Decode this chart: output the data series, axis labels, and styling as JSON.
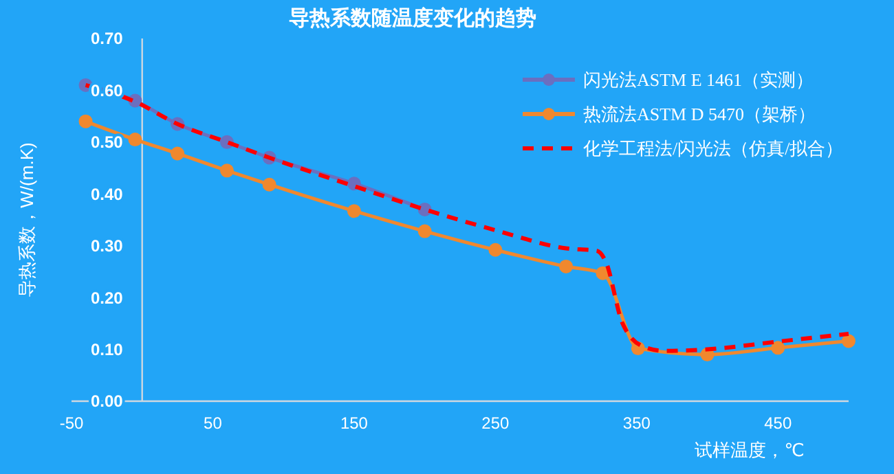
{
  "chart_data": {
    "type": "line",
    "title": "导热系数随温度变化的趋势",
    "xlabel": "试样温度，℃",
    "ylabel": "导热系数，W/(m.K)",
    "xlim": [
      -50,
      500
    ],
    "xticks": [
      -50,
      50,
      150,
      250,
      350,
      450
    ],
    "ylim": [
      0,
      0.7
    ],
    "yticks": [
      {
        "value": 0,
        "label": "0.00"
      },
      {
        "value": 0.1,
        "label": "0.10"
      },
      {
        "value": 0.2,
        "label": "0.20"
      },
      {
        "value": 0.3,
        "label": "0.30"
      },
      {
        "value": 0.4,
        "label": "0.40"
      },
      {
        "value": 0.5,
        "label": "0.50"
      },
      {
        "value": 0.6,
        "label": "0.60"
      },
      {
        "value": 0.7,
        "label": "0.70"
      }
    ],
    "grid": false,
    "legend": "top right",
    "series": [
      {
        "name": "闪光法ASTM E 1461（实测）",
        "color": "#6a6fc0",
        "marker": "circle",
        "line_style": "solid",
        "x": [
          -40,
          -5,
          25,
          60,
          90,
          150,
          200
        ],
        "values": [
          0.61,
          0.58,
          0.535,
          0.5,
          0.47,
          0.42,
          0.37
        ]
      },
      {
        "name": "热流法ASTM D 5470（架桥）",
        "color": "#f0882e",
        "marker": "circle",
        "line_style": "solid",
        "x": [
          -40,
          -5,
          25,
          60,
          90,
          150,
          200,
          250,
          300,
          326,
          351,
          400,
          450,
          500
        ],
        "values": [
          0.54,
          0.505,
          0.478,
          0.445,
          0.418,
          0.367,
          0.328,
          0.292,
          0.26,
          0.247,
          0.102,
          0.09,
          0.103,
          0.116
        ]
      },
      {
        "name": "化学工程法/闪光法（仿真/拟合）",
        "color": "#ff0000",
        "marker": "none",
        "line_style": "dashed",
        "x": [
          -40,
          -5,
          25,
          60,
          90,
          150,
          200,
          250,
          300,
          322,
          328,
          340,
          355,
          370,
          400,
          450,
          500
        ],
        "values": [
          0.61,
          0.578,
          0.535,
          0.5,
          0.47,
          0.415,
          0.37,
          0.33,
          0.295,
          0.29,
          0.27,
          0.15,
          0.105,
          0.097,
          0.1,
          0.115,
          0.13
        ]
      }
    ]
  }
}
